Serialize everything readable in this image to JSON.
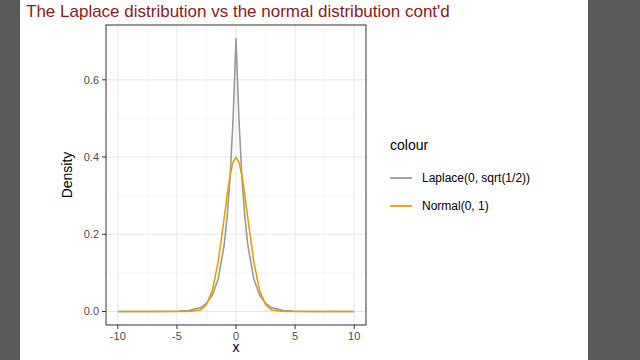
{
  "chart_data": {
    "type": "line",
    "title": "The Laplace distribution vs the normal distribution cont'd",
    "x_label": "x",
    "y_label": "Density",
    "legend_title": "colour",
    "x": [
      -10,
      -8,
      -6,
      -5,
      -4,
      -3,
      -2.5,
      -2,
      -1.5,
      -1,
      -0.75,
      -0.5,
      -0.25,
      0,
      0.25,
      0.5,
      0.75,
      1,
      1.5,
      2,
      2.5,
      3,
      4,
      5,
      6,
      8,
      10
    ],
    "series": [
      {
        "name": "Laplace(0, sqrt(1/2))",
        "color": "#999999",
        "values": [
          0,
          0,
          0.0001,
          0.0006,
          0.0025,
          0.01,
          0.021,
          0.042,
          0.085,
          0.172,
          0.245,
          0.349,
          0.496,
          0.707,
          0.496,
          0.349,
          0.245,
          0.172,
          0.085,
          0.042,
          0.021,
          0.01,
          0.0025,
          0.0006,
          0.0001,
          0,
          0
        ]
      },
      {
        "name": "Normal(0, 1)",
        "color": "#E69F00",
        "values": [
          0,
          0,
          0,
          0,
          0.0001,
          0.004,
          0.018,
          0.054,
          0.13,
          0.242,
          0.301,
          0.352,
          0.387,
          0.399,
          0.387,
          0.352,
          0.301,
          0.242,
          0.13,
          0.054,
          0.018,
          0.004,
          0.0001,
          0,
          0,
          0,
          0
        ]
      }
    ],
    "xlim": [
      -11,
      11
    ],
    "xticks": [
      -10,
      -5,
      0,
      5,
      10
    ],
    "ylim": [
      -0.035,
      0.742
    ],
    "yticks": [
      {
        "value": 0,
        "label": "0.0"
      },
      {
        "value": 0.2,
        "label": "0.2"
      },
      {
        "value": 0.4,
        "label": "0.4"
      },
      {
        "value": 0.6,
        "label": "0.6"
      }
    ],
    "grid": true,
    "legend": "right"
  }
}
